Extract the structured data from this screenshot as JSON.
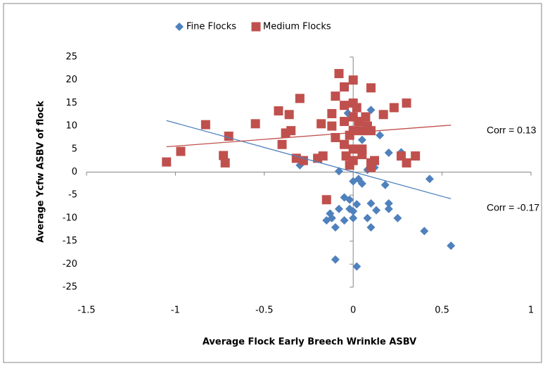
{
  "chart_data": {
    "type": "scatter",
    "xlabel": "Average Flock Early Breech Wrinkle ASBV",
    "ylabel": "Average Ycfw ASBV of flock",
    "xlim": [
      -1.5,
      1
    ],
    "ylim": [
      -25,
      25
    ],
    "xticks": [
      -1.5,
      -1,
      -0.5,
      0,
      0.5,
      1
    ],
    "yticks": [
      -25,
      -20,
      -15,
      -10,
      -5,
      0,
      5,
      10,
      15,
      20,
      25
    ],
    "grid": false,
    "legend": "top",
    "series": [
      {
        "name": "Fine Flocks",
        "color": "#4f81bd",
        "marker": "diamond",
        "x": [
          0.55,
          0.4,
          0.43,
          0.25,
          0.2,
          0.2,
          0.18,
          0.13,
          0.1,
          0.08,
          0.1,
          0.12,
          0.2,
          0.27,
          0.05,
          0.03,
          0.05,
          -0.02,
          0,
          -0.05,
          -0.08,
          -0.1,
          -0.12,
          -0.15,
          -0.13,
          -0.1,
          0.02,
          -0.05,
          0.02,
          0,
          -0.02,
          -0.3,
          -0.08,
          0.08,
          0,
          -0.03,
          0.1,
          0.15
        ],
        "values": [
          -16,
          -12.8,
          -1.5,
          -10,
          -8,
          -6.8,
          -2.8,
          -8.3,
          -12,
          -10,
          -6.8,
          1,
          4.2,
          4.3,
          -2.5,
          -1.5,
          7,
          -8,
          -10,
          -10.5,
          -8,
          -12,
          -10,
          -10.5,
          -9,
          -19,
          -20.5,
          -5.5,
          -7,
          -8.5,
          -6,
          1.5,
          0.2,
          0.5,
          -2,
          12.8,
          13.5,
          8
        ]
      },
      {
        "name": "Medium Flocks",
        "color": "#c0504d",
        "marker": "square",
        "x": [
          -1.05,
          -0.97,
          -0.83,
          -0.73,
          -0.72,
          -0.7,
          -0.55,
          -0.42,
          -0.4,
          -0.38,
          -0.36,
          -0.35,
          -0.32,
          -0.3,
          -0.28,
          -0.2,
          -0.17,
          -0.18,
          -0.12,
          -0.12,
          -0.1,
          -0.08,
          -0.05,
          -0.05,
          -0.05,
          -0.05,
          -0.04,
          -0.02,
          0,
          0,
          0,
          0,
          0,
          0,
          0.02,
          0.03,
          0.05,
          0.05,
          0.07,
          0.08,
          0.1,
          0.1,
          0.12,
          0.1,
          0.17,
          0.23,
          0.3,
          0.27,
          0.3,
          0.35,
          -0.15,
          0.1,
          -0.02,
          -0.1,
          0.05
        ],
        "values": [
          2.2,
          4.5,
          10.3,
          3.6,
          2,
          7.8,
          10.5,
          13.3,
          6,
          8.5,
          12.5,
          9,
          3,
          16,
          2.5,
          3,
          3.5,
          10.5,
          10,
          12.7,
          16.5,
          21.4,
          18.5,
          14.5,
          11,
          6,
          3.5,
          8,
          20,
          15,
          12,
          9,
          5,
          2.5,
          14,
          11,
          9,
          5,
          12,
          10,
          18.3,
          9,
          2.5,
          1,
          12.5,
          14,
          15,
          3.5,
          2,
          3.5,
          -6,
          2,
          1.5,
          7.5,
          3.8
        ]
      }
    ],
    "trendlines": [
      {
        "color": "#4f81bd",
        "x": [
          -1.05,
          0.55
        ],
        "values": [
          11.2,
          -5.8
        ]
      },
      {
        "color": "#c0504d",
        "x": [
          -1.05,
          0.55
        ],
        "values": [
          5.5,
          10.2
        ]
      }
    ],
    "annotations": [
      "Corr = 0.13",
      "Corr = -0.17"
    ]
  }
}
